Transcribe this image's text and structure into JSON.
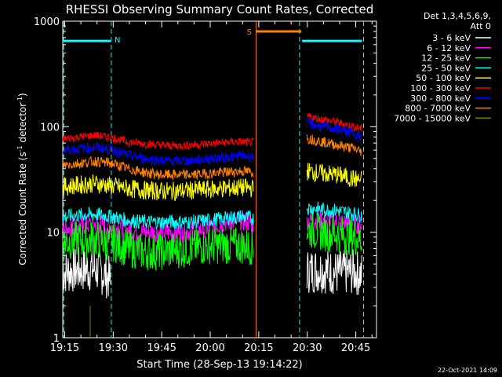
{
  "chart_data": {
    "type": "line",
    "title": "RHESSI Observing Summary Count Rates, Corrected",
    "xlabel": "Start Time (28-Sep-13 19:14:22)",
    "ylabel_main": "Corrected Count Rate (s",
    "ylabel_sup1": "-1",
    "ylabel_mid": " detector",
    "ylabel_sup2": "-1",
    "ylabel_end": ")",
    "yscale": "log",
    "ylim": [
      1,
      1000
    ],
    "xlim_minutes": [
      0,
      97
    ],
    "x_tick_labels": [
      "19:15",
      "19:30",
      "19:45",
      "20:00",
      "20:15",
      "20:30",
      "20:45"
    ],
    "x_tick_minutes": [
      0.6,
      15.6,
      30.6,
      45.6,
      60.6,
      75.6,
      90.6
    ],
    "y_tick_labels": [
      "1",
      "10",
      "100",
      "1000"
    ],
    "y_tick_values": [
      1,
      10,
      100,
      1000
    ],
    "legend_header_1": "Det 1,3,4,5,6,9,",
    "legend_header_2": "Att 0",
    "legend_position": "right",
    "footer_date": "22-Oct-2021 14:09",
    "series": [
      {
        "name": "3 - 6 keV",
        "color": "#ffffff",
        "segments": [
          {
            "x": [
              0,
              5,
              10,
              14,
              15
            ],
            "y": [
              4.2,
              4.4,
              4.5,
              3.8,
              3.2
            ]
          },
          {
            "x": [
              75.5,
              80,
              85,
              90,
              92.5
            ],
            "y": [
              4.3,
              4.4,
              4.1,
              4.2,
              4.0
            ]
          }
        ]
      },
      {
        "name": "6 - 12 keV",
        "color": "#ff00ff",
        "segments": [
          {
            "x": [
              0,
              5,
              10,
              15,
              20,
              25,
              30,
              35,
              40,
              45,
              50,
              55,
              59
            ],
            "y": [
              11,
              11.5,
              12,
              11.5,
              10.5,
              10,
              10,
              10,
              10.2,
              11,
              12.5,
              13,
              12
            ]
          },
          {
            "x": [
              75.5,
              80,
              85,
              90,
              92.5
            ],
            "y": [
              13,
              13,
              12.5,
              12,
              12
            ]
          }
        ]
      },
      {
        "name": "12 - 25 keV",
        "color": "#00ff00",
        "segments": [
          {
            "x": [
              0,
              5,
              10,
              15,
              20,
              25,
              30,
              35,
              40,
              45,
              50,
              55,
              59
            ],
            "y": [
              8,
              8.5,
              8.5,
              8,
              7,
              6.5,
              6.5,
              6.8,
              7,
              7.5,
              7.5,
              7.5,
              7.3
            ]
          },
          {
            "x": [
              75.5,
              80,
              85,
              90,
              92.5
            ],
            "y": [
              10.5,
              10,
              9.5,
              9,
              8.5
            ]
          }
        ]
      },
      {
        "name": "25 - 50 keV",
        "color": "#00ffff",
        "segments": [
          {
            "x": [
              0,
              5,
              10,
              15,
              20,
              25,
              30,
              35,
              40,
              45,
              50,
              55,
              59
            ],
            "y": [
              14,
              14.5,
              14.8,
              14,
              13,
              12.5,
              12.5,
              12.5,
              12.5,
              13,
              13.5,
              14,
              13.5
            ]
          },
          {
            "x": [
              75.5,
              80,
              85,
              90,
              92.5
            ],
            "y": [
              17,
              16.5,
              16,
              15,
              14.5
            ]
          }
        ]
      },
      {
        "name": "50 - 100 keV",
        "color": "#ffff00",
        "segments": [
          {
            "x": [
              0,
              5,
              10,
              15,
              20,
              25,
              30,
              35,
              40,
              45,
              50,
              55,
              59
            ],
            "y": [
              27,
              28,
              29,
              27.5,
              26,
              25,
              24.5,
              24.5,
              25,
              25.5,
              26,
              26.5,
              26
            ]
          },
          {
            "x": [
              75.5,
              80,
              85,
              90,
              92.5
            ],
            "y": [
              38,
              36,
              35,
              32,
              31
            ]
          }
        ]
      },
      {
        "name": "100 - 300 keV",
        "color": "#ff0000",
        "segments": [
          {
            "x": [
              0,
              5,
              10,
              15,
              20,
              25,
              30,
              35,
              40,
              45,
              50,
              55,
              59
            ],
            "y": [
              76,
              80,
              83,
              79,
              72,
              69,
              67,
              66,
              67,
              69,
              71,
              72,
              71
            ]
          },
          {
            "x": [
              75.5,
              80,
              85,
              90,
              92.5
            ],
            "y": [
              125,
              118,
              110,
              100,
              95
            ]
          }
        ]
      },
      {
        "name": "300 - 800 keV",
        "color": "#0000ff",
        "segments": [
          {
            "x": [
              0,
              5,
              10,
              15,
              20,
              25,
              30,
              35,
              40,
              45,
              50,
              55,
              59
            ],
            "y": [
              60,
              62,
              64,
              61,
              54,
              50,
              48,
              47,
              48,
              50,
              51,
              53,
              52
            ]
          },
          {
            "x": [
              75.5,
              80,
              85,
              90,
              92.5
            ],
            "y": [
              110,
              100,
              95,
              86,
              80
            ]
          }
        ]
      },
      {
        "name": "800 - 7000 keV",
        "color": "#ff8000",
        "segments": [
          {
            "x": [
              0,
              5,
              10,
              15,
              20,
              25,
              30,
              35,
              40,
              45,
              50,
              55,
              59
            ],
            "y": [
              43,
              45,
              47,
              45,
              40,
              37,
              35,
              35,
              35,
              36,
              37,
              38,
              37
            ]
          },
          {
            "x": [
              75.5,
              80,
              85,
              90,
              92.5
            ],
            "y": [
              78,
              72,
              67,
              62,
              58
            ]
          }
        ]
      },
      {
        "name": "7000 - 15000 keV",
        "color": "#808000",
        "segments": [
          {
            "x": [
              0
            ],
            "y": [
              1
            ]
          }
        ]
      }
    ],
    "saa_flag": {
      "label": "S",
      "color": "#ff8000",
      "start": 59.8,
      "end": 73.8,
      "level": 800
    },
    "night_flag": {
      "label": "N",
      "color": "#00ffff",
      "bars": [
        [
          0,
          14.8
        ],
        [
          74,
          92.5
        ]
      ],
      "level": 650
    },
    "cyan_dashed_x": [
      0.3,
      15,
      73.2,
      93
    ],
    "orange_vertical_x": 59.8,
    "attenuator_spike_x": 8.5
  }
}
